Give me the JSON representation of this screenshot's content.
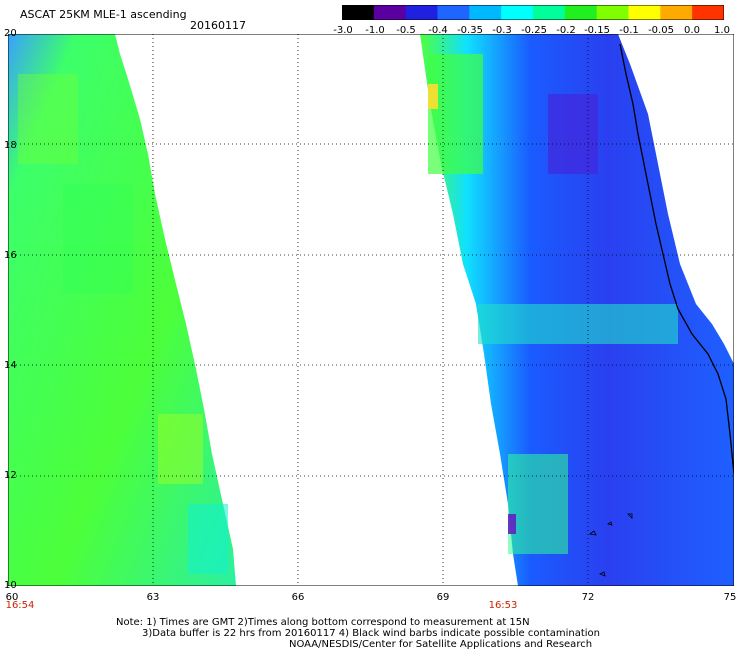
{
  "header": {
    "title": "ASCAT 25KM MLE-1 ascending",
    "date": "20160117"
  },
  "colorbar": {
    "labels": [
      "-3.0",
      "-1.0",
      "-0.5",
      "-0.4",
      "-0.35",
      "-0.3",
      "-0.25",
      "-0.2",
      "-0.15",
      "-0.1",
      "-0.05",
      "0.0",
      "1.0"
    ],
    "colors": [
      "#000000",
      "#5a00a0",
      "#2020e0",
      "#1e66ff",
      "#00b8ff",
      "#00ffff",
      "#00ff9a",
      "#20f020",
      "#80ff00",
      "#ffff00",
      "#ffaa00",
      "#ff3300"
    ]
  },
  "map": {
    "lat_labels": [
      "20",
      "18",
      "16",
      "14",
      "12",
      "10"
    ],
    "lon_labels": [
      "60",
      "63",
      "66",
      "69",
      "72",
      "75"
    ],
    "swath_times": [
      "16:54",
      "16:53"
    ]
  },
  "footer": {
    "line1": "Note: 1) Times are GMT 2)Times along bottom correspond to measurement at 15N",
    "line2": "3)Data buffer is 22 hrs from 20160117 4) Black wind barbs indicate possible contamination",
    "line3": "NOAA/NESDIS/Center for Satellite Applications and Research"
  }
}
